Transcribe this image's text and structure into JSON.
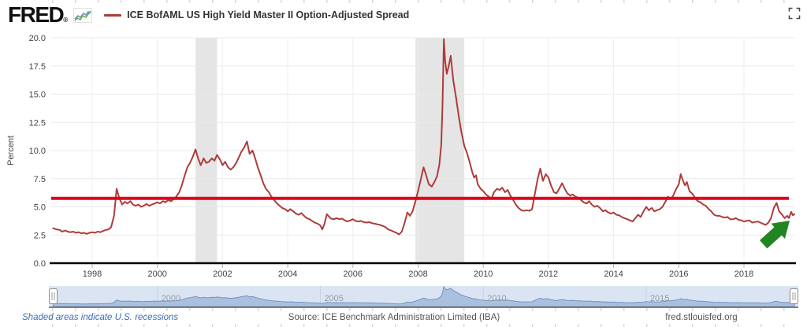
{
  "header": {
    "logo_text": "FRED",
    "logo_reg_mark": "®",
    "legend_label": "ICE BofAML US High Yield Master II Option-Adjusted Spread"
  },
  "colors": {
    "series_line": "#ad3c3a",
    "annotation_line": "#e0051c",
    "recession_band": "#e5e5e5",
    "grid_h": "#e9e9e9",
    "grid_v": "#efefef",
    "axis_text": "#444444",
    "axis_line": "#000000",
    "tick_mark": "#b0b0b0",
    "slider_track": "#dbe4f3",
    "slider_grid": "#c6d2e8",
    "slider_area_fill": "#a9c0df",
    "slider_area_stroke": "#7593c2",
    "slider_label": "#949ba5",
    "slider_baseline": "#6f6f6f",
    "handle_border": "#8b8b8b",
    "arrow_green": "#218521",
    "link_blue": "#3b6fb6",
    "logo_spark_blue": "#6a8fc0",
    "logo_spark_green": "#74aa50"
  },
  "chart_data": {
    "type": "line",
    "title": "ICE BofAML US High Yield Master II Option-Adjusted Spread",
    "xlabel": "",
    "ylabel": "Percent",
    "ylim": [
      0,
      20
    ],
    "yticks": [
      0,
      2.5,
      5,
      7.5,
      10,
      12.5,
      15,
      17.5,
      20
    ],
    "xticks": [
      1998,
      2000,
      2002,
      2004,
      2006,
      2008,
      2010,
      2012,
      2014,
      2016,
      2018
    ],
    "x_range": [
      1996.8,
      2019.55
    ],
    "grid": true,
    "legend_position": "top",
    "series": [
      {
        "name": "ICE BofAML US High Yield Master II Option-Adjusted Spread",
        "units": "Percent",
        "points": [
          [
            1996.8,
            3.1
          ],
          [
            1996.9,
            3.0
          ],
          [
            1997.0,
            2.95
          ],
          [
            1997.08,
            2.8
          ],
          [
            1997.17,
            2.9
          ],
          [
            1997.25,
            2.8
          ],
          [
            1997.33,
            2.75
          ],
          [
            1997.42,
            2.8
          ],
          [
            1997.5,
            2.7
          ],
          [
            1997.58,
            2.75
          ],
          [
            1997.67,
            2.65
          ],
          [
            1997.75,
            2.7
          ],
          [
            1997.83,
            2.6
          ],
          [
            1997.92,
            2.7
          ],
          [
            1998.0,
            2.75
          ],
          [
            1998.08,
            2.7
          ],
          [
            1998.17,
            2.8
          ],
          [
            1998.25,
            2.75
          ],
          [
            1998.33,
            2.85
          ],
          [
            1998.42,
            2.95
          ],
          [
            1998.5,
            3.0
          ],
          [
            1998.58,
            3.2
          ],
          [
            1998.67,
            4.2
          ],
          [
            1998.75,
            6.6
          ],
          [
            1998.83,
            5.8
          ],
          [
            1998.92,
            5.2
          ],
          [
            1999.0,
            5.45
          ],
          [
            1999.08,
            5.3
          ],
          [
            1999.17,
            5.5
          ],
          [
            1999.25,
            5.2
          ],
          [
            1999.33,
            5.1
          ],
          [
            1999.42,
            5.2
          ],
          [
            1999.5,
            5.0
          ],
          [
            1999.58,
            5.1
          ],
          [
            1999.67,
            5.25
          ],
          [
            1999.75,
            5.1
          ],
          [
            1999.83,
            5.2
          ],
          [
            1999.92,
            5.3
          ],
          [
            2000.0,
            5.4
          ],
          [
            2000.08,
            5.3
          ],
          [
            2000.17,
            5.5
          ],
          [
            2000.25,
            5.4
          ],
          [
            2000.33,
            5.6
          ],
          [
            2000.42,
            5.5
          ],
          [
            2000.5,
            5.7
          ],
          [
            2000.58,
            5.9
          ],
          [
            2000.67,
            6.3
          ],
          [
            2000.75,
            6.9
          ],
          [
            2000.83,
            7.7
          ],
          [
            2000.92,
            8.5
          ],
          [
            2001.0,
            8.9
          ],
          [
            2001.08,
            9.4
          ],
          [
            2001.17,
            10.1
          ],
          [
            2001.25,
            9.3
          ],
          [
            2001.33,
            8.7
          ],
          [
            2001.42,
            9.3
          ],
          [
            2001.5,
            8.9
          ],
          [
            2001.58,
            9.0
          ],
          [
            2001.67,
            9.3
          ],
          [
            2001.75,
            9.1
          ],
          [
            2001.83,
            9.6
          ],
          [
            2001.92,
            9.2
          ],
          [
            2002.0,
            8.7
          ],
          [
            2002.08,
            9.0
          ],
          [
            2002.17,
            8.5
          ],
          [
            2002.25,
            8.3
          ],
          [
            2002.33,
            8.5
          ],
          [
            2002.42,
            8.9
          ],
          [
            2002.5,
            9.4
          ],
          [
            2002.58,
            9.9
          ],
          [
            2002.67,
            10.3
          ],
          [
            2002.75,
            10.8
          ],
          [
            2002.83,
            9.7
          ],
          [
            2002.92,
            10.0
          ],
          [
            2003.0,
            9.3
          ],
          [
            2003.08,
            8.5
          ],
          [
            2003.17,
            7.8
          ],
          [
            2003.25,
            7.1
          ],
          [
            2003.33,
            6.6
          ],
          [
            2003.42,
            6.3
          ],
          [
            2003.5,
            5.9
          ],
          [
            2003.58,
            5.6
          ],
          [
            2003.67,
            5.3
          ],
          [
            2003.75,
            5.1
          ],
          [
            2003.83,
            4.9
          ],
          [
            2003.92,
            4.8
          ],
          [
            2004.0,
            4.6
          ],
          [
            2004.08,
            4.8
          ],
          [
            2004.17,
            4.6
          ],
          [
            2004.25,
            4.4
          ],
          [
            2004.33,
            4.3
          ],
          [
            2004.42,
            4.45
          ],
          [
            2004.5,
            4.2
          ],
          [
            2004.58,
            4.0
          ],
          [
            2004.67,
            3.9
          ],
          [
            2004.75,
            3.75
          ],
          [
            2004.83,
            3.6
          ],
          [
            2004.92,
            3.5
          ],
          [
            2005.0,
            3.35
          ],
          [
            2005.06,
            3.0
          ],
          [
            2005.13,
            3.5
          ],
          [
            2005.2,
            4.35
          ],
          [
            2005.28,
            4.1
          ],
          [
            2005.33,
            3.95
          ],
          [
            2005.42,
            3.9
          ],
          [
            2005.5,
            4.0
          ],
          [
            2005.58,
            3.9
          ],
          [
            2005.67,
            3.95
          ],
          [
            2005.75,
            3.8
          ],
          [
            2005.83,
            3.7
          ],
          [
            2005.92,
            3.8
          ],
          [
            2006.0,
            3.9
          ],
          [
            2006.08,
            3.75
          ],
          [
            2006.17,
            3.7
          ],
          [
            2006.25,
            3.75
          ],
          [
            2006.33,
            3.65
          ],
          [
            2006.42,
            3.6
          ],
          [
            2006.5,
            3.65
          ],
          [
            2006.58,
            3.55
          ],
          [
            2006.67,
            3.5
          ],
          [
            2006.75,
            3.45
          ],
          [
            2006.83,
            3.4
          ],
          [
            2006.92,
            3.3
          ],
          [
            2007.0,
            3.2
          ],
          [
            2007.08,
            3.0
          ],
          [
            2007.17,
            2.9
          ],
          [
            2007.25,
            2.8
          ],
          [
            2007.33,
            2.7
          ],
          [
            2007.42,
            2.55
          ],
          [
            2007.5,
            2.8
          ],
          [
            2007.58,
            3.5
          ],
          [
            2007.67,
            4.5
          ],
          [
            2007.75,
            4.2
          ],
          [
            2007.83,
            4.6
          ],
          [
            2007.92,
            5.5
          ],
          [
            2008.0,
            6.4
          ],
          [
            2008.08,
            7.4
          ],
          [
            2008.17,
            8.5
          ],
          [
            2008.25,
            7.8
          ],
          [
            2008.33,
            7.0
          ],
          [
            2008.42,
            6.8
          ],
          [
            2008.5,
            7.2
          ],
          [
            2008.58,
            7.7
          ],
          [
            2008.65,
            8.7
          ],
          [
            2008.71,
            10.5
          ],
          [
            2008.75,
            14.0
          ],
          [
            2008.79,
            19.9
          ],
          [
            2008.83,
            18.0
          ],
          [
            2008.88,
            16.8
          ],
          [
            2008.94,
            17.5
          ],
          [
            2009.0,
            18.4
          ],
          [
            2009.08,
            16.2
          ],
          [
            2009.17,
            14.6
          ],
          [
            2009.25,
            13.0
          ],
          [
            2009.33,
            11.6
          ],
          [
            2009.42,
            10.4
          ],
          [
            2009.5,
            9.8
          ],
          [
            2009.58,
            9.0
          ],
          [
            2009.67,
            8.0
          ],
          [
            2009.72,
            7.6
          ],
          [
            2009.78,
            7.8
          ],
          [
            2009.83,
            7.0
          ],
          [
            2009.92,
            6.6
          ],
          [
            2010.0,
            6.4
          ],
          [
            2010.08,
            6.1
          ],
          [
            2010.17,
            5.9
          ],
          [
            2010.25,
            5.7
          ],
          [
            2010.33,
            6.3
          ],
          [
            2010.42,
            6.6
          ],
          [
            2010.5,
            6.5
          ],
          [
            2010.58,
            6.7
          ],
          [
            2010.67,
            6.3
          ],
          [
            2010.75,
            6.5
          ],
          [
            2010.83,
            6.0
          ],
          [
            2010.92,
            5.6
          ],
          [
            2011.0,
            5.2
          ],
          [
            2011.08,
            4.9
          ],
          [
            2011.17,
            4.7
          ],
          [
            2011.25,
            4.65
          ],
          [
            2011.33,
            4.7
          ],
          [
            2011.42,
            4.65
          ],
          [
            2011.5,
            4.8
          ],
          [
            2011.58,
            6.1
          ],
          [
            2011.67,
            7.5
          ],
          [
            2011.75,
            8.4
          ],
          [
            2011.83,
            7.3
          ],
          [
            2011.92,
            7.9
          ],
          [
            2012.0,
            7.6
          ],
          [
            2012.08,
            6.9
          ],
          [
            2012.17,
            6.3
          ],
          [
            2012.25,
            6.2
          ],
          [
            2012.33,
            6.6
          ],
          [
            2012.42,
            7.1
          ],
          [
            2012.5,
            6.6
          ],
          [
            2012.58,
            6.2
          ],
          [
            2012.67,
            6.0
          ],
          [
            2012.75,
            6.1
          ],
          [
            2012.83,
            5.9
          ],
          [
            2012.92,
            5.8
          ],
          [
            2013.0,
            5.6
          ],
          [
            2013.08,
            5.4
          ],
          [
            2013.17,
            5.3
          ],
          [
            2013.25,
            5.5
          ],
          [
            2013.33,
            5.2
          ],
          [
            2013.42,
            5.0
          ],
          [
            2013.5,
            5.1
          ],
          [
            2013.58,
            4.9
          ],
          [
            2013.67,
            4.6
          ],
          [
            2013.75,
            4.7
          ],
          [
            2013.83,
            4.5
          ],
          [
            2013.92,
            4.4
          ],
          [
            2014.0,
            4.5
          ],
          [
            2014.08,
            4.3
          ],
          [
            2014.17,
            4.25
          ],
          [
            2014.25,
            4.1
          ],
          [
            2014.33,
            4.0
          ],
          [
            2014.42,
            3.9
          ],
          [
            2014.5,
            3.8
          ],
          [
            2014.58,
            3.7
          ],
          [
            2014.67,
            4.0
          ],
          [
            2014.75,
            4.3
          ],
          [
            2014.83,
            4.1
          ],
          [
            2014.92,
            4.6
          ],
          [
            2015.0,
            5.0
          ],
          [
            2015.08,
            4.7
          ],
          [
            2015.17,
            4.9
          ],
          [
            2015.25,
            4.6
          ],
          [
            2015.33,
            4.7
          ],
          [
            2015.42,
            4.8
          ],
          [
            2015.5,
            5.0
          ],
          [
            2015.58,
            5.4
          ],
          [
            2015.67,
            5.9
          ],
          [
            2015.75,
            5.7
          ],
          [
            2015.83,
            6.0
          ],
          [
            2015.92,
            6.6
          ],
          [
            2016.0,
            7.0
          ],
          [
            2016.06,
            7.9
          ],
          [
            2016.13,
            7.3
          ],
          [
            2016.19,
            6.9
          ],
          [
            2016.25,
            7.2
          ],
          [
            2016.33,
            6.4
          ],
          [
            2016.42,
            6.15
          ],
          [
            2016.5,
            5.8
          ],
          [
            2016.58,
            5.5
          ],
          [
            2016.67,
            5.4
          ],
          [
            2016.75,
            5.2
          ],
          [
            2016.83,
            5.1
          ],
          [
            2016.92,
            4.8
          ],
          [
            2017.0,
            4.6
          ],
          [
            2017.08,
            4.3
          ],
          [
            2017.17,
            4.2
          ],
          [
            2017.25,
            4.2
          ],
          [
            2017.33,
            4.1
          ],
          [
            2017.42,
            4.05
          ],
          [
            2017.5,
            4.1
          ],
          [
            2017.58,
            3.9
          ],
          [
            2017.67,
            3.9
          ],
          [
            2017.75,
            4.0
          ],
          [
            2017.83,
            3.85
          ],
          [
            2017.92,
            3.8
          ],
          [
            2018.0,
            3.7
          ],
          [
            2018.08,
            3.75
          ],
          [
            2018.17,
            3.8
          ],
          [
            2018.25,
            3.6
          ],
          [
            2018.33,
            3.65
          ],
          [
            2018.42,
            3.7
          ],
          [
            2018.5,
            3.6
          ],
          [
            2018.58,
            3.5
          ],
          [
            2018.67,
            3.4
          ],
          [
            2018.75,
            3.6
          ],
          [
            2018.83,
            4.0
          ],
          [
            2018.92,
            4.9
          ],
          [
            2019.0,
            5.35
          ],
          [
            2019.08,
            4.6
          ],
          [
            2019.17,
            4.3
          ],
          [
            2019.25,
            4.0
          ],
          [
            2019.33,
            4.2
          ],
          [
            2019.38,
            4.0
          ],
          [
            2019.45,
            4.55
          ],
          [
            2019.5,
            4.25
          ],
          [
            2019.55,
            4.35
          ]
        ]
      }
    ],
    "annotations": {
      "horizontal_line": {
        "value": 5.75
      },
      "recession_bands": [
        {
          "start": 2001.17,
          "end": 2001.83
        },
        {
          "start": 2007.92,
          "end": 2009.42
        }
      ],
      "arrow": {
        "style": "green-up-right",
        "near_year": 2019.4,
        "near_value": 3.0
      }
    }
  },
  "slider": {
    "label_years": [
      2000,
      2005,
      2010,
      2015
    ],
    "labels": [
      "2000",
      "2005",
      "2010",
      "2015"
    ]
  },
  "footer": {
    "recession_note": "Shaded areas indicate U.S. recessions",
    "source": "Source: ICE Benchmark Administration Limited (IBA)",
    "site": "fred.stlouisfed.org"
  }
}
